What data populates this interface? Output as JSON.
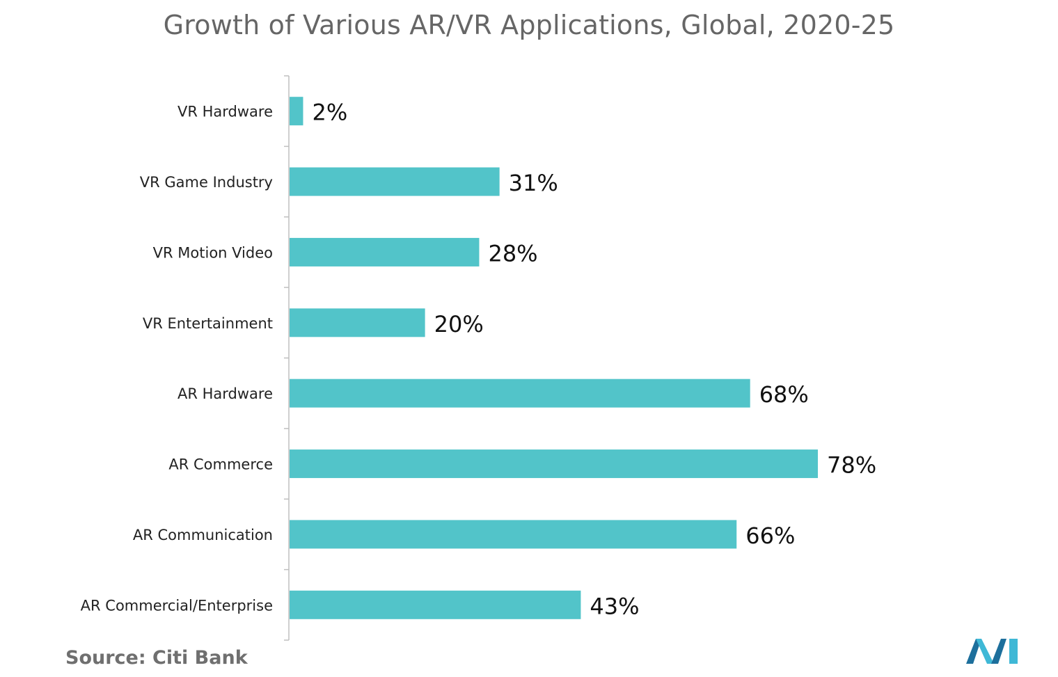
{
  "chart_data": {
    "type": "bar",
    "orientation": "horizontal",
    "title": "Growth of Various AR/VR Applications, Global, 2020-25",
    "categories": [
      "VR Hardware",
      "VR Game Industry",
      "VR Motion Video",
      "VR Entertainment",
      "AR Hardware",
      "AR Commerce",
      "AR Communication",
      "AR Commercial/Enterprise"
    ],
    "values": [
      2,
      31,
      28,
      20,
      68,
      78,
      66,
      43
    ],
    "value_labels": [
      "2%",
      "31%",
      "28%",
      "20%",
      "68%",
      "78%",
      "66%",
      "43%"
    ],
    "unit": "%",
    "xlim": [
      0,
      100
    ],
    "grid": false,
    "legend": "none",
    "bar_color": "#52c4c9"
  },
  "source": "Source: Citi Bank",
  "logo_icon": "mordor-logo-icon",
  "colors": {
    "logo_dark": "#1d6f9c",
    "logo_light": "#3fb8d6",
    "axis": "#bfbfbf"
  }
}
